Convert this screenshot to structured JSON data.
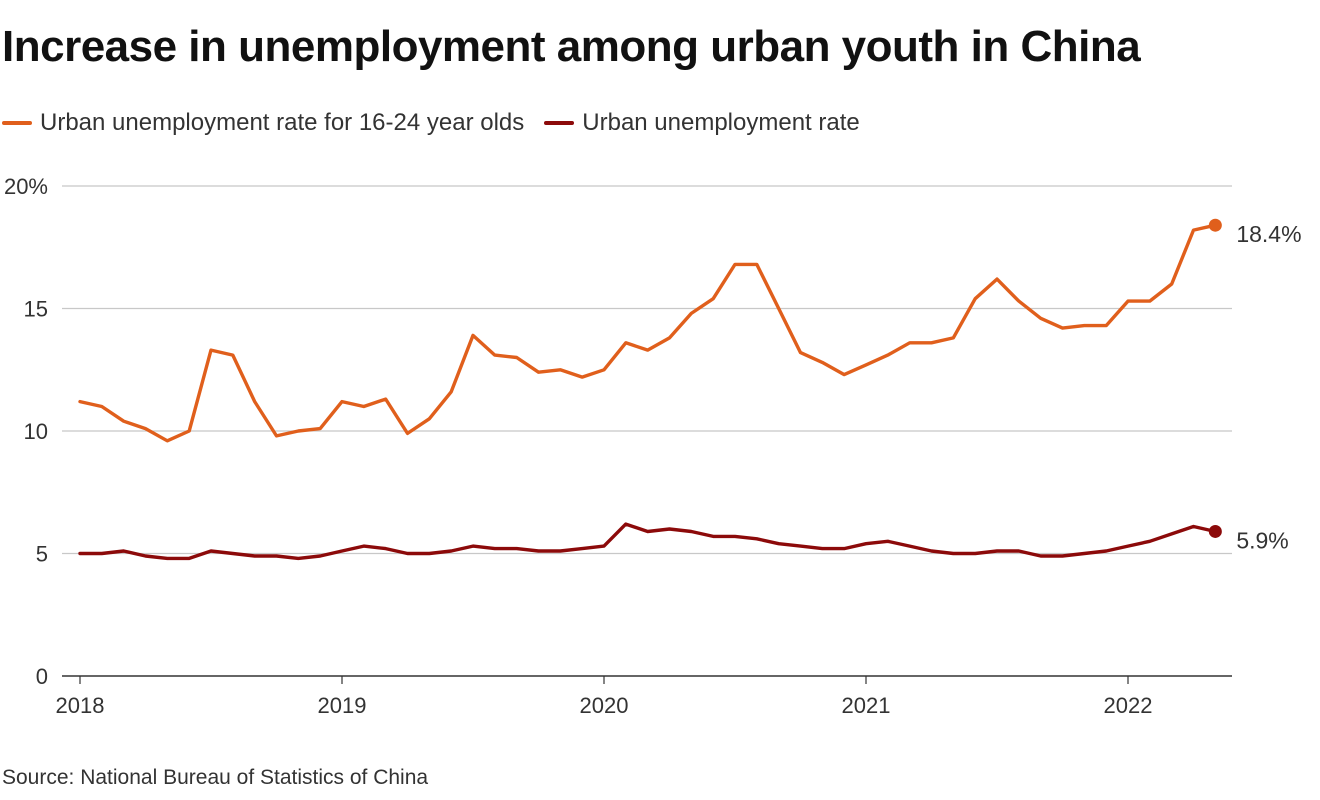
{
  "title": "Increase in unemployment among urban youth in China",
  "source": "Source: National Bureau of Statistics of China",
  "colors": {
    "youth": "#e05f1c",
    "overall": "#8c0a0a",
    "grid": "#c8c8c8",
    "axis": "#333333"
  },
  "chart_data": {
    "type": "line",
    "title": "Increase in unemployment among urban youth in China",
    "xlabel": "",
    "ylabel": "",
    "ylim": [
      0,
      20
    ],
    "xlim": [
      2018,
      2022.4
    ],
    "y_ticks": [
      0,
      5,
      10,
      15,
      20
    ],
    "y_tick_labels": [
      "0",
      "5",
      "10",
      "15",
      "20%"
    ],
    "x_ticks": [
      2018,
      2019,
      2020,
      2021,
      2022
    ],
    "x_tick_labels": [
      "2018",
      "2019",
      "2020",
      "2021",
      "2022"
    ],
    "grid": "horizontal",
    "legend_position": "top-left",
    "x_start": "2018-01",
    "x_step": "month",
    "series": [
      {
        "name": "Urban unemployment rate for 16-24 year olds",
        "color": "#e05f1c",
        "end_label": "18.4%",
        "values": [
          11.2,
          11.0,
          10.4,
          10.1,
          9.6,
          10.0,
          13.3,
          13.1,
          11.2,
          9.8,
          10.0,
          10.1,
          11.2,
          11.0,
          11.3,
          9.9,
          10.5,
          11.6,
          13.9,
          13.1,
          13.0,
          12.4,
          12.5,
          12.2,
          12.5,
          13.6,
          13.3,
          13.8,
          14.8,
          15.4,
          16.8,
          16.8,
          15.0,
          13.2,
          12.8,
          12.3,
          12.7,
          13.1,
          13.6,
          13.6,
          13.8,
          15.4,
          16.2,
          15.3,
          14.6,
          14.2,
          14.3,
          14.3,
          15.3,
          15.3,
          16.0,
          18.2,
          18.4
        ]
      },
      {
        "name": "Urban unemployment rate",
        "color": "#8c0a0a",
        "end_label": "5.9%",
        "values": [
          5.0,
          5.0,
          5.1,
          4.9,
          4.8,
          4.8,
          5.1,
          5.0,
          4.9,
          4.9,
          4.8,
          4.9,
          5.1,
          5.3,
          5.2,
          5.0,
          5.0,
          5.1,
          5.3,
          5.2,
          5.2,
          5.1,
          5.1,
          5.2,
          5.3,
          6.2,
          5.9,
          6.0,
          5.9,
          5.7,
          5.7,
          5.6,
          5.4,
          5.3,
          5.2,
          5.2,
          5.4,
          5.5,
          5.3,
          5.1,
          5.0,
          5.0,
          5.1,
          5.1,
          4.9,
          4.9,
          5.0,
          5.1,
          5.3,
          5.5,
          5.8,
          6.1,
          5.9
        ]
      }
    ]
  }
}
